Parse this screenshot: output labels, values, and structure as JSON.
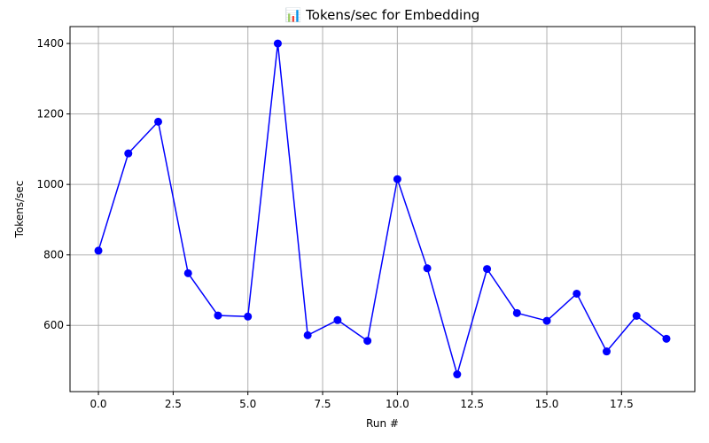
{
  "chart_data": {
    "type": "line",
    "title": "📊 Tokens/sec for Embedding",
    "xlabel": "Run #",
    "ylabel": "Tokens/sec",
    "xlim": [
      -0.95,
      19.95
    ],
    "ylim": [
      412,
      1448
    ],
    "xticks": [
      0.0,
      2.5,
      5.0,
      7.5,
      10.0,
      12.5,
      15.0,
      17.5
    ],
    "xtick_labels": [
      "0.0",
      "2.5",
      "5.0",
      "7.5",
      "10.0",
      "12.5",
      "15.0",
      "17.5"
    ],
    "yticks": [
      600,
      800,
      1000,
      1200,
      1400
    ],
    "ytick_labels": [
      "600",
      "800",
      "1000",
      "1200",
      "1400"
    ],
    "grid": true,
    "series": [
      {
        "color": "#0000ff",
        "marker": "circle",
        "x": [
          0,
          1,
          2,
          3,
          4,
          5,
          6,
          7,
          8,
          9,
          10,
          11,
          12,
          13,
          14,
          15,
          16,
          17,
          18,
          19
        ],
        "y": [
          812,
          1088,
          1178,
          748,
          628,
          625,
          1400,
          572,
          615,
          556,
          1015,
          762,
          461,
          760,
          635,
          613,
          690,
          526,
          627,
          562
        ]
      }
    ]
  }
}
